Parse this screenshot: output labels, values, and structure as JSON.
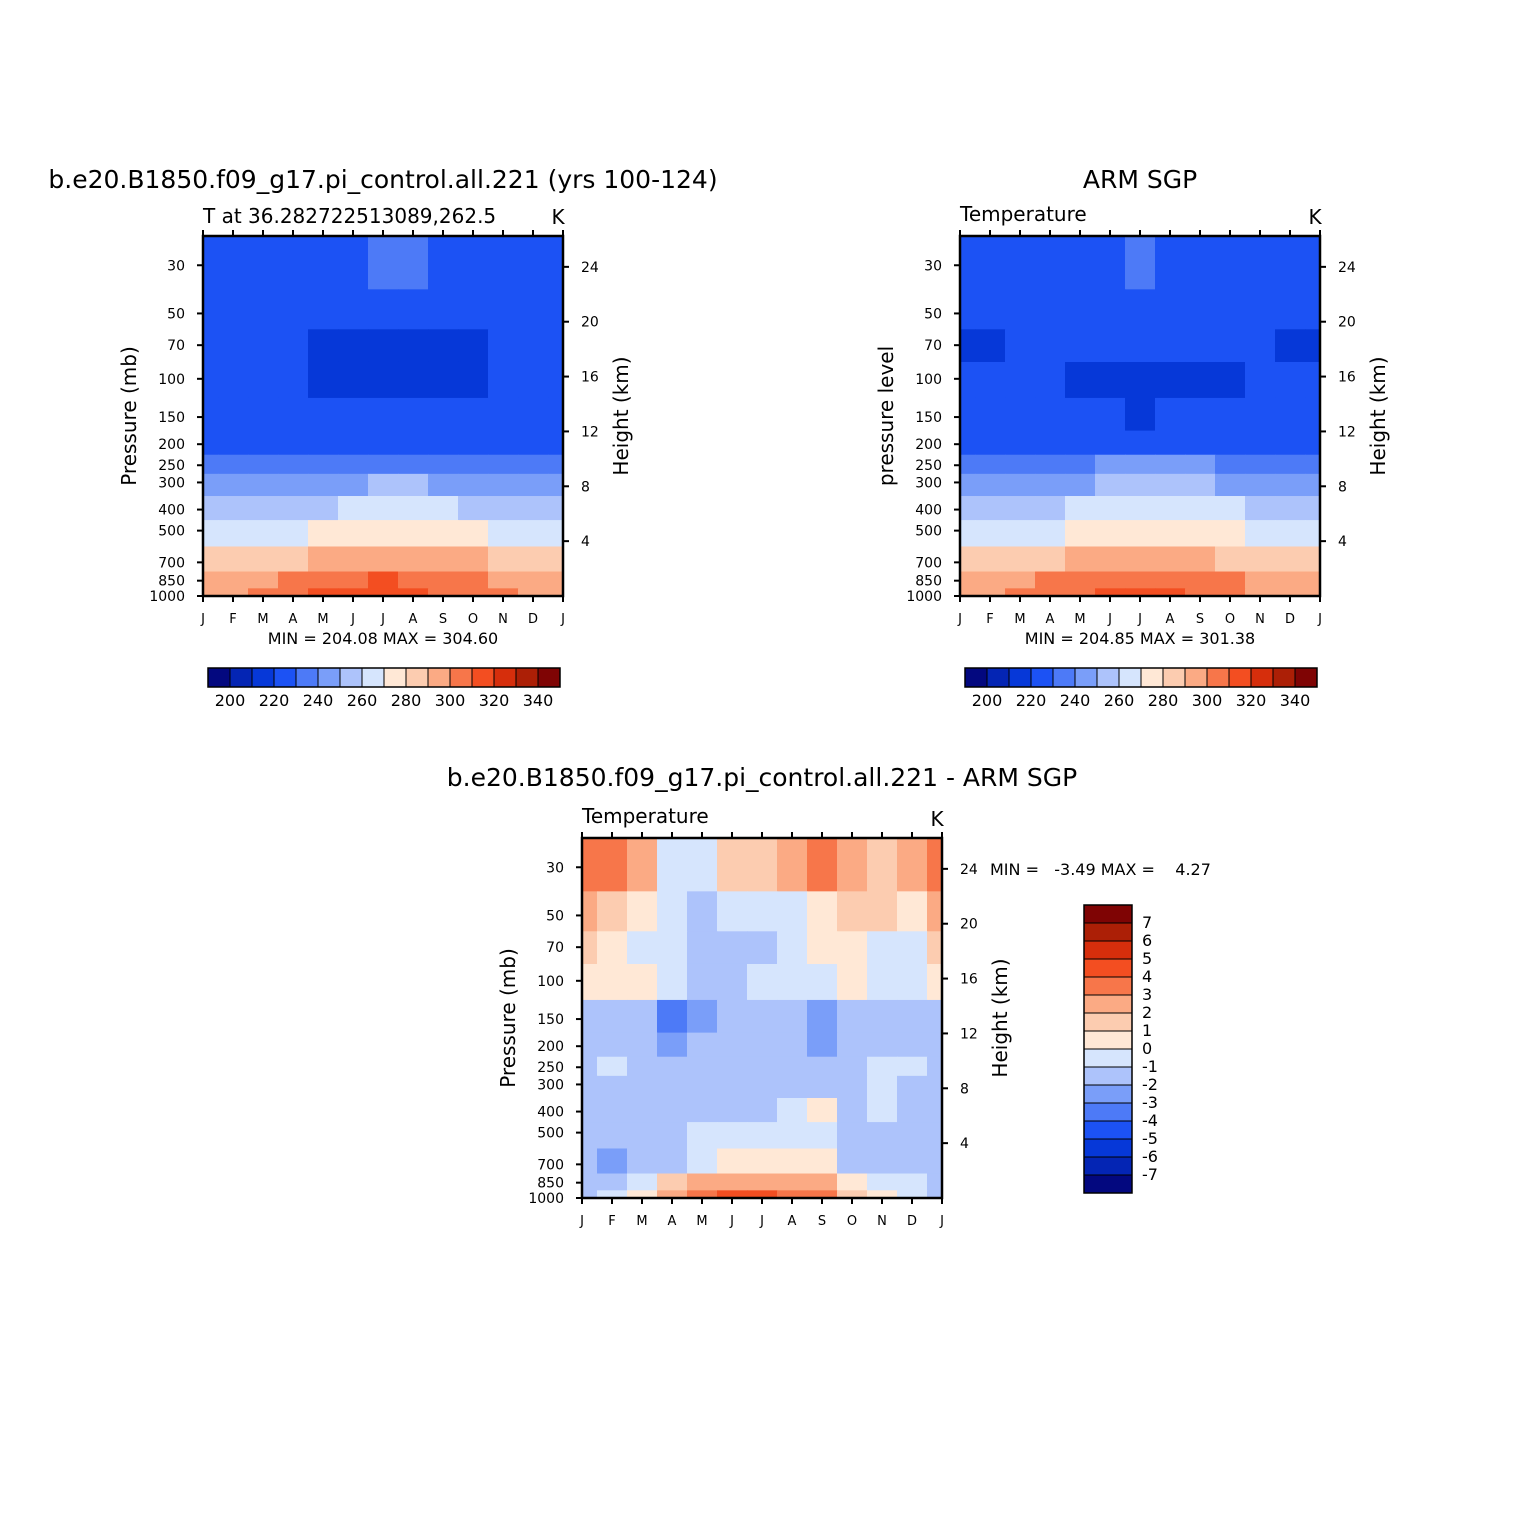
{
  "months": [
    "J",
    "F",
    "M",
    "A",
    "M",
    "J",
    "J",
    "A",
    "S",
    "O",
    "N",
    "D",
    "J"
  ],
  "pressure_ticks": [
    30,
    50,
    70,
    100,
    150,
    200,
    250,
    300,
    400,
    500,
    700,
    850,
    1000
  ],
  "height_ticks": [
    4,
    8,
    12,
    16,
    20,
    24
  ],
  "palette_abs": [
    "#03087f",
    "#0425b4",
    "#0638d8",
    "#1c52f4",
    "#4d7af7",
    "#7a9ef9",
    "#adc3fb",
    "#d6e5fd",
    "#ffe8d6",
    "#fcccb0",
    "#fbaa84",
    "#f7764a",
    "#f34e21",
    "#d62e0c",
    "#ac1f06",
    "#7f0404"
  ],
  "palette_diff": [
    "#03087f",
    "#0425b4",
    "#0638d8",
    "#1c52f4",
    "#4d7af7",
    "#7a9ef9",
    "#adc3fb",
    "#d6e5fd",
    "#ffe8d6",
    "#fcccb0",
    "#fbaa84",
    "#f7764a",
    "#f34e21",
    "#d62e0c",
    "#ac1f06",
    "#7f0404"
  ],
  "chart_data": [
    {
      "type": "heatmap",
      "title": "b.e20.B1850.f09_g17.pi_control.all.221 (yrs 100-124)",
      "subtitle": "T at 36.282722513089,262.5",
      "units": "K",
      "xlabel": "",
      "ylabel": "Pressure (mb)",
      "ylabel_right": "Height (km)",
      "x": [
        "J",
        "F",
        "M",
        "A",
        "M",
        "J",
        "J",
        "A",
        "S",
        "O",
        "N",
        "D",
        "J"
      ],
      "y": [
        30,
        50,
        70,
        100,
        150,
        200,
        250,
        300,
        400,
        500,
        700,
        850,
        1000
      ],
      "y_scale": "log",
      "stats": "MIN = 204.08 MAX = 304.60",
      "colorbar_labels": [
        "200",
        "220",
        "240",
        "260",
        "280",
        "300",
        "320",
        "340"
      ],
      "values": [
        [
          215,
          215,
          215,
          215,
          219,
          219,
          220,
          220,
          219,
          215,
          215,
          215,
          215
        ],
        [
          215,
          215,
          215,
          215,
          214,
          214,
          214,
          214,
          214,
          214,
          214,
          215,
          215
        ],
        [
          215,
          215,
          213,
          213,
          209,
          209,
          209,
          209,
          209,
          209,
          211,
          212,
          213
        ],
        [
          215,
          215,
          215,
          213,
          209,
          209,
          209,
          209,
          209,
          209,
          212,
          215,
          215
        ],
        [
          215,
          215,
          215,
          214,
          211,
          210,
          210,
          210,
          210,
          212,
          214,
          215,
          215
        ],
        [
          218,
          218,
          218,
          218,
          218,
          218,
          218,
          218,
          218,
          218,
          218,
          218,
          218
        ],
        [
          225,
          225,
          225,
          226,
          228,
          229,
          229,
          229,
          229,
          228,
          226,
          225,
          225
        ],
        [
          234,
          233,
          233,
          235,
          237,
          239,
          240,
          240,
          239,
          237,
          235,
          234,
          234
        ],
        [
          243,
          243,
          244,
          246,
          249,
          251,
          252,
          252,
          251,
          249,
          246,
          244,
          243
        ],
        [
          254,
          254,
          255,
          257,
          260,
          263,
          264,
          264,
          263,
          260,
          257,
          255,
          254
        ],
        [
          271,
          272,
          274,
          277,
          281,
          284,
          285,
          285,
          284,
          280,
          276,
          273,
          271
        ],
        [
          283,
          285,
          288,
          292,
          296,
          299,
          300,
          299,
          296,
          292,
          288,
          285,
          283
        ],
        [
          286,
          288,
          292,
          297,
          300,
          302,
          304,
          302,
          299,
          294,
          290,
          287,
          286
        ]
      ]
    },
    {
      "type": "heatmap",
      "title": "ARM SGP",
      "subtitle": "Temperature",
      "units": "K",
      "xlabel": "",
      "ylabel": "pressure level",
      "ylabel_right": "Height (km)",
      "x": [
        "J",
        "F",
        "M",
        "A",
        "M",
        "J",
        "J",
        "A",
        "S",
        "O",
        "N",
        "D",
        "J"
      ],
      "y": [
        30,
        50,
        70,
        100,
        150,
        200,
        250,
        300,
        400,
        500,
        700,
        850,
        1000
      ],
      "y_scale": "log",
      "stats": "MIN = 204.85 MAX = 301.38",
      "colorbar_labels": [
        "200",
        "220",
        "240",
        "260",
        "280",
        "300",
        "320",
        "340"
      ],
      "values": [
        [
          215,
          215,
          215,
          215,
          217,
          218,
          220,
          218,
          217,
          215,
          215,
          215,
          215
        ],
        [
          212,
          213,
          214,
          215,
          215,
          215,
          215,
          215,
          215,
          215,
          214,
          213,
          212
        ],
        [
          209,
          209,
          211,
          213,
          212,
          211,
          211,
          211,
          211,
          211,
          212,
          209,
          209
        ],
        [
          214,
          214,
          214,
          212,
          209,
          209,
          209,
          209,
          209,
          209,
          211,
          214,
          214
        ],
        [
          215,
          215,
          215,
          214,
          212,
          210,
          209,
          210,
          211,
          212,
          214,
          215,
          215
        ],
        [
          219,
          219,
          219,
          219,
          219,
          219,
          219,
          219,
          219,
          219,
          219,
          219,
          219
        ],
        [
          226,
          226,
          226,
          227,
          229,
          230,
          231,
          231,
          230,
          229,
          227,
          226,
          226
        ],
        [
          234,
          234,
          234,
          236,
          238,
          240,
          241,
          241,
          240,
          238,
          236,
          234,
          234
        ],
        [
          244,
          244,
          245,
          247,
          250,
          252,
          253,
          253,
          252,
          250,
          247,
          245,
          244
        ],
        [
          255,
          255,
          256,
          258,
          261,
          263,
          264,
          264,
          263,
          261,
          258,
          256,
          255
        ],
        [
          270,
          271,
          273,
          276,
          280,
          283,
          284,
          284,
          283,
          279,
          275,
          272,
          270
        ],
        [
          282,
          284,
          287,
          291,
          295,
          297,
          298,
          297,
          295,
          291,
          287,
          284,
          282
        ],
        [
          285,
          287,
          291,
          295,
          298,
          300,
          301,
          300,
          298,
          294,
          289,
          286,
          285
        ]
      ]
    },
    {
      "type": "heatmap",
      "title": "b.e20.B1850.f09_g17.pi_control.all.221 - ARM SGP",
      "subtitle": "Temperature",
      "units": "K",
      "xlabel": "",
      "ylabel": "Pressure (mb)",
      "ylabel_right": "Height (km)",
      "x": [
        "J",
        "F",
        "M",
        "A",
        "M",
        "J",
        "J",
        "A",
        "S",
        "O",
        "N",
        "D",
        "J"
      ],
      "y": [
        30,
        50,
        70,
        100,
        150,
        200,
        250,
        300,
        400,
        500,
        700,
        850,
        1000
      ],
      "y_scale": "log",
      "stats": "MIN =   -3.49 MAX =    4.27",
      "colorbar_labels": [
        "7",
        "6",
        "5",
        "4",
        "3",
        "2",
        "1",
        "0",
        "-1",
        "-2",
        "-3",
        "-4",
        "-5",
        "-6",
        "-7"
      ],
      "values": [
        [
          3.6,
          3.8,
          2.0,
          -0.5,
          -0.3,
          1.0,
          1.5,
          2.5,
          3.6,
          2.5,
          1.0,
          2.0,
          3.6
        ],
        [
          2.0,
          1.0,
          0.5,
          -0.8,
          -1.2,
          -0.8,
          -0.5,
          -0.5,
          0.5,
          1.5,
          1.0,
          0.3,
          2.0
        ],
        [
          1.2,
          0.5,
          -0.3,
          -1.0,
          -1.5,
          -1.5,
          -1.2,
          -1.0,
          0.2,
          0.5,
          -0.5,
          -0.3,
          1.2
        ],
        [
          0.5,
          0.5,
          0.8,
          -1.0,
          -1.5,
          -1.2,
          -0.5,
          -0.3,
          -0.5,
          0.3,
          -0.8,
          -0.5,
          0.5
        ],
        [
          -1.5,
          -1.5,
          -1.5,
          -3.5,
          -2.5,
          -1.8,
          -1.5,
          -2.0,
          -3.0,
          -1.5,
          -2.0,
          -1.5,
          -1.5
        ],
        [
          -1.5,
          -1.5,
          -1.5,
          -2.2,
          -2.0,
          -1.5,
          -2.0,
          -1.8,
          -2.2,
          -1.5,
          -1.5,
          -1.5,
          -1.5
        ],
        [
          -1.5,
          -0.8,
          -1.5,
          -1.8,
          -1.5,
          -1.5,
          -1.5,
          -1.5,
          -1.5,
          -1.5,
          -0.8,
          -1.0,
          -1.5
        ],
        [
          -1.5,
          -1.5,
          -1.5,
          -1.5,
          -1.5,
          -1.5,
          -1.5,
          -1.5,
          -1.2,
          -1.5,
          -0.8,
          -1.5,
          -1.5
        ],
        [
          -1.5,
          -1.5,
          -1.5,
          -1.5,
          -1.5,
          -1.5,
          -1.5,
          -1.0,
          0.3,
          -1.5,
          -0.8,
          -1.5,
          -1.5
        ],
        [
          -2.0,
          -1.5,
          -1.5,
          -1.5,
          -1.0,
          -0.8,
          -0.8,
          -0.5,
          -0.5,
          -1.5,
          -1.5,
          -1.5,
          -2.0
        ],
        [
          -2.0,
          -2.2,
          -1.5,
          -1.2,
          -0.8,
          0.2,
          0.5,
          0.5,
          0.2,
          -1.5,
          -1.5,
          -1.8,
          -2.0
        ],
        [
          -2.0,
          -1.5,
          -0.5,
          1.5,
          2.0,
          2.5,
          2.5,
          2.5,
          2.5,
          0.5,
          -0.5,
          -0.8,
          -2.0
        ],
        [
          -1.5,
          -1.0,
          0.5,
          2.5,
          3.5,
          4.2,
          4.2,
          3.8,
          3.5,
          1.0,
          0.5,
          -0.5,
          -1.5
        ]
      ]
    }
  ]
}
